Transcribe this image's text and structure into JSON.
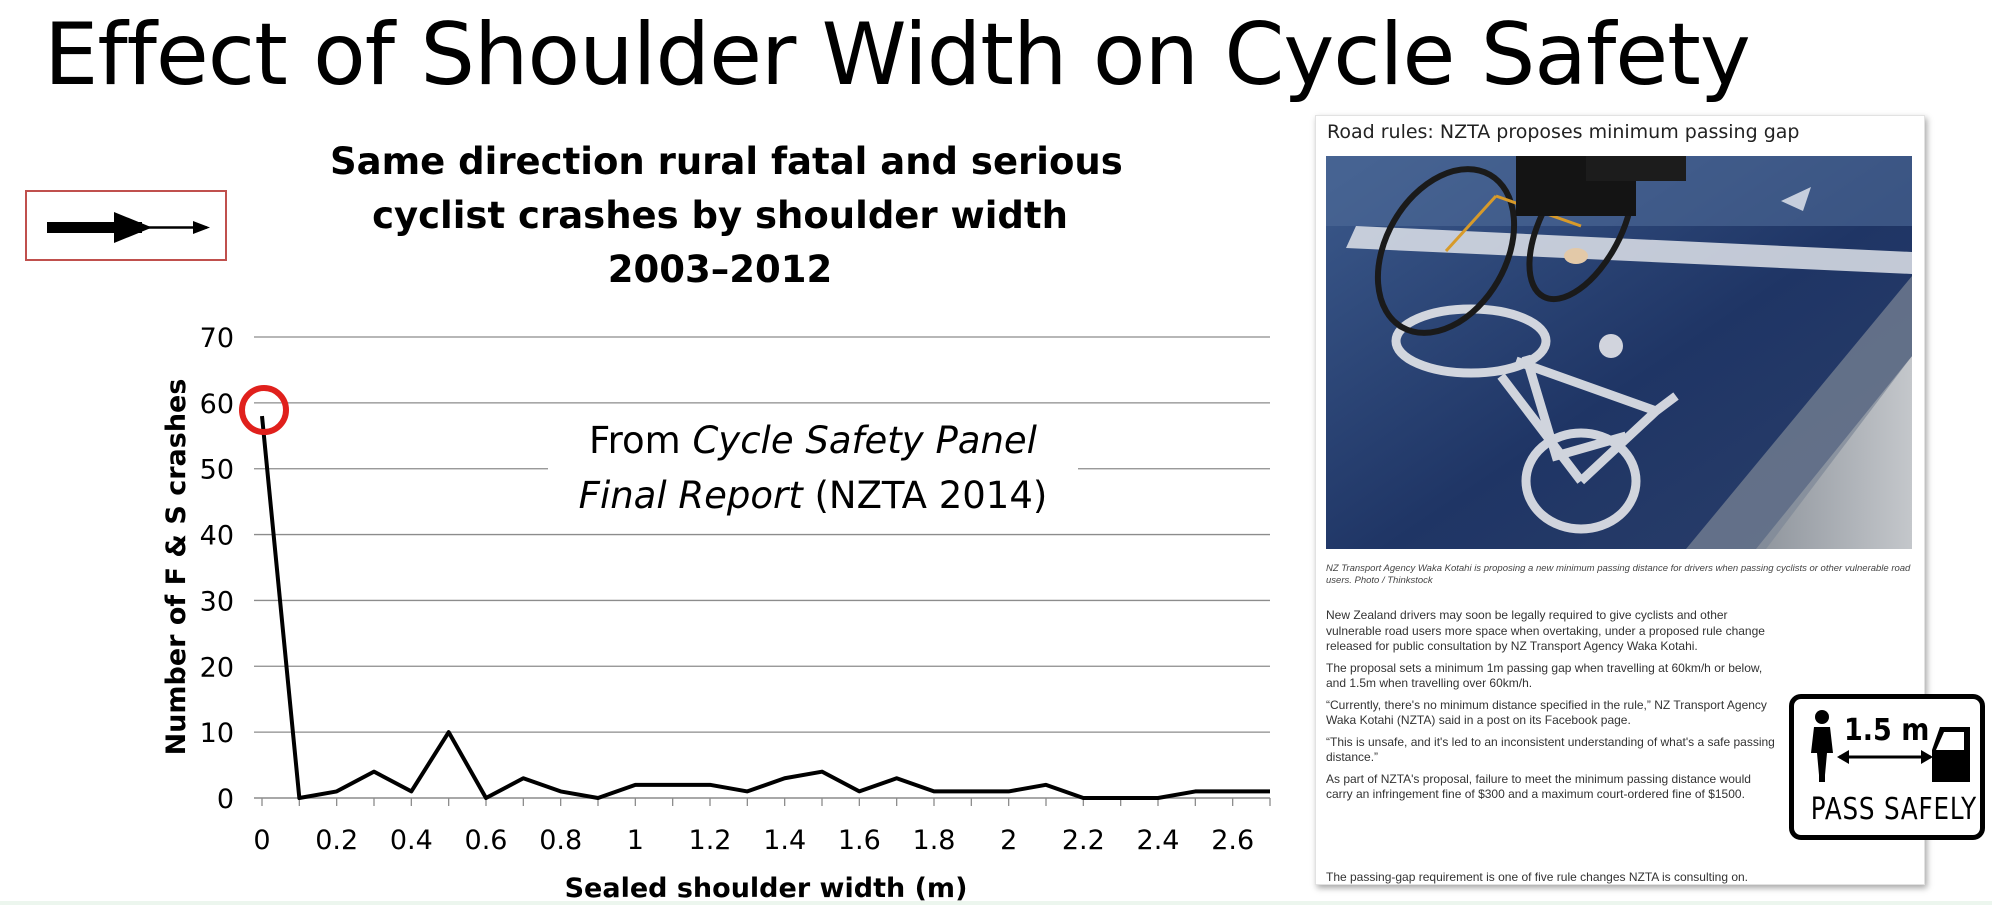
{
  "slide": {
    "title": "Effect of Shoulder Width on Cycle Safety"
  },
  "chart_data": {
    "type": "line",
    "title_lines": [
      "Same direction rural fatal and serious",
      "cyclist crashes by shoulder width",
      "2003–2012"
    ],
    "xlabel": "Sealed shoulder width (m)",
    "ylabel": "Number of F & S crashes",
    "xlim": [
      0,
      2.7
    ],
    "ylim": [
      0,
      70
    ],
    "x_ticks": [
      0,
      0.2,
      0.4,
      0.6,
      0.8,
      1,
      1.2,
      1.4,
      1.6,
      1.8,
      2,
      2.2,
      2.4,
      2.6
    ],
    "x_tick_labels": [
      "0",
      "0.2",
      "0.4",
      "0.6",
      "0.8",
      "1",
      "1.2",
      "1.4",
      "1.6",
      "1.8",
      "2",
      "2.2",
      "2.4",
      "2.6"
    ],
    "y_ticks": [
      0,
      10,
      20,
      30,
      40,
      50,
      60,
      70
    ],
    "y_tick_labels": [
      "0",
      "10",
      "20",
      "30",
      "40",
      "50",
      "60",
      "70"
    ],
    "grid": "horizontal",
    "x": [
      0,
      0.1,
      0.2,
      0.3,
      0.4,
      0.5,
      0.6,
      0.7,
      0.8,
      0.9,
      1.0,
      1.1,
      1.2,
      1.3,
      1.4,
      1.5,
      1.6,
      1.7,
      1.8,
      1.9,
      2.0,
      2.1,
      2.2,
      2.3,
      2.4,
      2.5,
      2.6,
      2.7
    ],
    "series": [
      {
        "values": [
          58,
          0,
          1,
          4,
          1,
          10,
          0,
          3,
          1,
          0,
          2,
          2,
          2,
          1,
          3,
          4,
          1,
          3,
          1,
          1,
          1,
          2,
          0,
          0,
          0,
          1,
          1,
          1
        ]
      }
    ],
    "highlight": {
      "x": 0,
      "y": 58,
      "shape": "circle",
      "color": "#e0201c"
    },
    "annotation": {
      "prefix": "From ",
      "italic1": "Cycle Safety Panel",
      "italic2": "Final Report",
      "suffix": " (NZTA 2014)"
    },
    "line_color": "#000000",
    "grid_color": "#8c8c8c"
  },
  "article": {
    "headline": "Road rules: NZTA proposes minimum passing gap",
    "caption": "NZ Transport Agency Waka Kotahi is proposing a new minimum passing distance for drivers when passing cyclists or other vulnerable road users. Photo / Thinkstock",
    "paragraphs": [
      "New Zealand drivers may soon be legally required to give cyclists and other vulnerable road users more space when overtaking, under a proposed rule change released for public consultation by NZ Transport Agency Waka Kotahi.",
      "The proposal sets a minimum 1m passing gap when travelling at 60km/h or below, and 1.5m when travelling over 60km/h.",
      "“Currently, there's no minimum distance specified in the rule,” NZ Transport Agency Waka Kotahi (NZTA) said in a post on its Facebook page.",
      "“This is unsafe, and it's led to an inconsistent understanding of what's a safe passing distance.”",
      "As part of NZTA's proposal, failure to meet the minimum passing distance would carry an infringement fine of $300 and a maximum court-ordered fine of $1500.",
      "The passing-gap requirement is one of five rule changes NZTA is consulting on."
    ]
  },
  "sign": {
    "distance": "1.5 m",
    "text": "PASS SAFELY"
  }
}
